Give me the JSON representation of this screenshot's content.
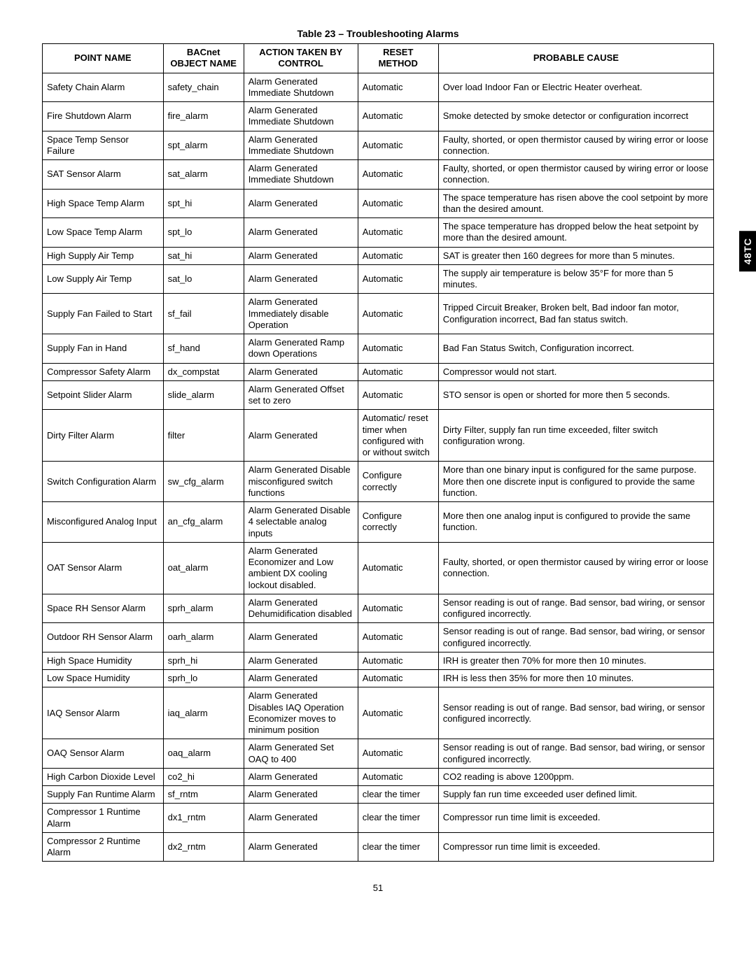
{
  "title": "Table 23 – Troubleshooting Alarms",
  "side_tab": "48TC",
  "page_number": "51",
  "headers": {
    "c1": "POINT NAME",
    "c2": "BACnet OBJECT NAME",
    "c3": "ACTION TAKEN BY CONTROL",
    "c4": "RESET METHOD",
    "c5": "PROBABLE CAUSE"
  },
  "rows": [
    {
      "c1": "Safety Chain Alarm",
      "c2": "safety_chain",
      "c3": "Alarm Generated Immediate Shutdown",
      "c4": "Automatic",
      "c5": "Over load Indoor Fan or Electric Heater overheat."
    },
    {
      "c1": "Fire Shutdown Alarm",
      "c2": "fire_alarm",
      "c3": "Alarm Generated Immediate Shutdown",
      "c4": "Automatic",
      "c5": "Smoke detected by smoke detector or configuration incorrect"
    },
    {
      "c1": "Space Temp Sensor Failure",
      "c2": "spt_alarm",
      "c3": "Alarm Generated Immediate Shutdown",
      "c4": "Automatic",
      "c5": "Faulty, shorted, or open thermistor caused by wiring error or loose connection."
    },
    {
      "c1": "SAT Sensor Alarm",
      "c2": "sat_alarm",
      "c3": "Alarm Generated Immediate Shutdown",
      "c4": "Automatic",
      "c5": "Faulty, shorted, or open thermistor caused by wiring error or loose connection."
    },
    {
      "c1": "High Space Temp Alarm",
      "c2": "spt_hi",
      "c3": "Alarm Generated",
      "c4": "Automatic",
      "c5": "The space temperature has risen above the cool setpoint by more than the desired amount."
    },
    {
      "c1": "Low Space Temp Alarm",
      "c2": "spt_lo",
      "c3": "Alarm Generated",
      "c4": "Automatic",
      "c5": "The space temperature has dropped below the heat setpoint by more than the desired amount."
    },
    {
      "c1": "High Supply Air Temp",
      "c2": "sat_hi",
      "c3": "Alarm Generated",
      "c4": "Automatic",
      "c5": "SAT is greater then 160 degrees for more than 5 minutes."
    },
    {
      "c1": "Low Supply Air Temp",
      "c2": "sat_lo",
      "c3": "Alarm Generated",
      "c4": "Automatic",
      "c5": "The supply air temperature is below 35°F for more than 5 minutes."
    },
    {
      "c1": "Supply Fan Failed to Start",
      "c2": "sf_fail",
      "c3": "Alarm Generated Immediately disable Operation",
      "c4": "Automatic",
      "c5": "Tripped Circuit Breaker, Broken belt, Bad indoor fan motor, Configuration incorrect, Bad fan status switch."
    },
    {
      "c1": "Supply Fan in Hand",
      "c2": "sf_hand",
      "c3": "Alarm Generated Ramp down Operations",
      "c4": "Automatic",
      "c5": "Bad Fan Status Switch, Configuration incorrect."
    },
    {
      "c1": "Compressor Safety Alarm",
      "c2": "dx_compstat",
      "c3": "Alarm Generated",
      "c4": "Automatic",
      "c5": "Compressor would not start."
    },
    {
      "c1": "Setpoint Slider Alarm",
      "c2": "slide_alarm",
      "c3": "Alarm Generated Offset set to zero",
      "c4": "Automatic",
      "c5": "STO sensor is open or shorted for more then 5 seconds."
    },
    {
      "c1": "Dirty Filter Alarm",
      "c2": "filter",
      "c3": "Alarm Generated",
      "c4": "Automatic/ reset timer when configured with or without switch",
      "c5": "Dirty Filter, supply fan run time exceeded, filter switch configuration wrong."
    },
    {
      "c1": "Switch Configuration Alarm",
      "c2": "sw_cfg_alarm",
      "c3": "Alarm Generated Disable misconfigured switch functions",
      "c4": "Configure correctly",
      "c5": "More than one binary input is configured for the same purpose. More then one discrete input is configured to provide the same function."
    },
    {
      "c1": "Misconfigured Analog Input",
      "c2": "an_cfg_alarm",
      "c3": "Alarm Generated Disable 4 selectable analog inputs",
      "c4": "Configure correctly",
      "c5": "More then one analog input is configured to provide the same function."
    },
    {
      "c1": "OAT Sensor Alarm",
      "c2": "oat_alarm",
      "c3": "Alarm Generated Economizer and Low ambient DX cooling lockout disabled.",
      "c4": "Automatic",
      "c5": "Faulty, shorted, or open thermistor caused by wiring error or loose connection."
    },
    {
      "c1": "Space RH Sensor Alarm",
      "c2": "sprh_alarm",
      "c3": "Alarm Generated Dehumidification disabled",
      "c4": "Automatic",
      "c5": "Sensor reading is out of range. Bad sensor, bad wiring, or sensor configured incorrectly."
    },
    {
      "c1": "Outdoor RH Sensor Alarm",
      "c2": "oarh_alarm",
      "c3": "Alarm Generated",
      "c4": "Automatic",
      "c5": "Sensor reading is out of range. Bad sensor, bad wiring, or sensor configured incorrectly."
    },
    {
      "c1": "High Space Humidity",
      "c2": "sprh_hi",
      "c3": "Alarm Generated",
      "c4": "Automatic",
      "c5": "IRH is greater then 70% for more then 10 minutes."
    },
    {
      "c1": "Low Space Humidity",
      "c2": "sprh_lo",
      "c3": "Alarm Generated",
      "c4": "Automatic",
      "c5": "IRH is less then 35% for more then 10 minutes."
    },
    {
      "c1": "IAQ Sensor Alarm",
      "c2": "iaq_alarm",
      "c3": "Alarm Generated Disables IAQ Operation Economizer moves to minimum position",
      "c4": "Automatic",
      "c5": "Sensor reading is out of range. Bad sensor, bad wiring, or sensor configured incorrectly."
    },
    {
      "c1": "OAQ Sensor Alarm",
      "c2": "oaq_alarm",
      "c3": "Alarm Generated Set OAQ to 400",
      "c4": "Automatic",
      "c5": "Sensor reading is out of range.  Bad sensor, bad wiring, or sensor configured incorrectly."
    },
    {
      "c1": "High Carbon Dioxide Level",
      "c2": "co2_hi",
      "c3": "Alarm Generated",
      "c4": "Automatic",
      "c5": "CO2 reading is above 1200ppm."
    },
    {
      "c1": "Supply Fan Runtime Alarm",
      "c2": "sf_rntm",
      "c3": "Alarm Generated",
      "c4": "clear the timer",
      "c5": "Supply fan run time exceeded user defined limit."
    },
    {
      "c1": "Compressor 1 Runtime Alarm",
      "c2": "dx1_rntm",
      "c3": "Alarm Generated",
      "c4": "clear the timer",
      "c5": "Compressor run time limit is exceeded."
    },
    {
      "c1": "Compressor 2 Runtime Alarm",
      "c2": "dx2_rntm",
      "c3": "Alarm Generated",
      "c4": "clear the timer",
      "c5": "Compressor run time limit is exceeded."
    }
  ]
}
